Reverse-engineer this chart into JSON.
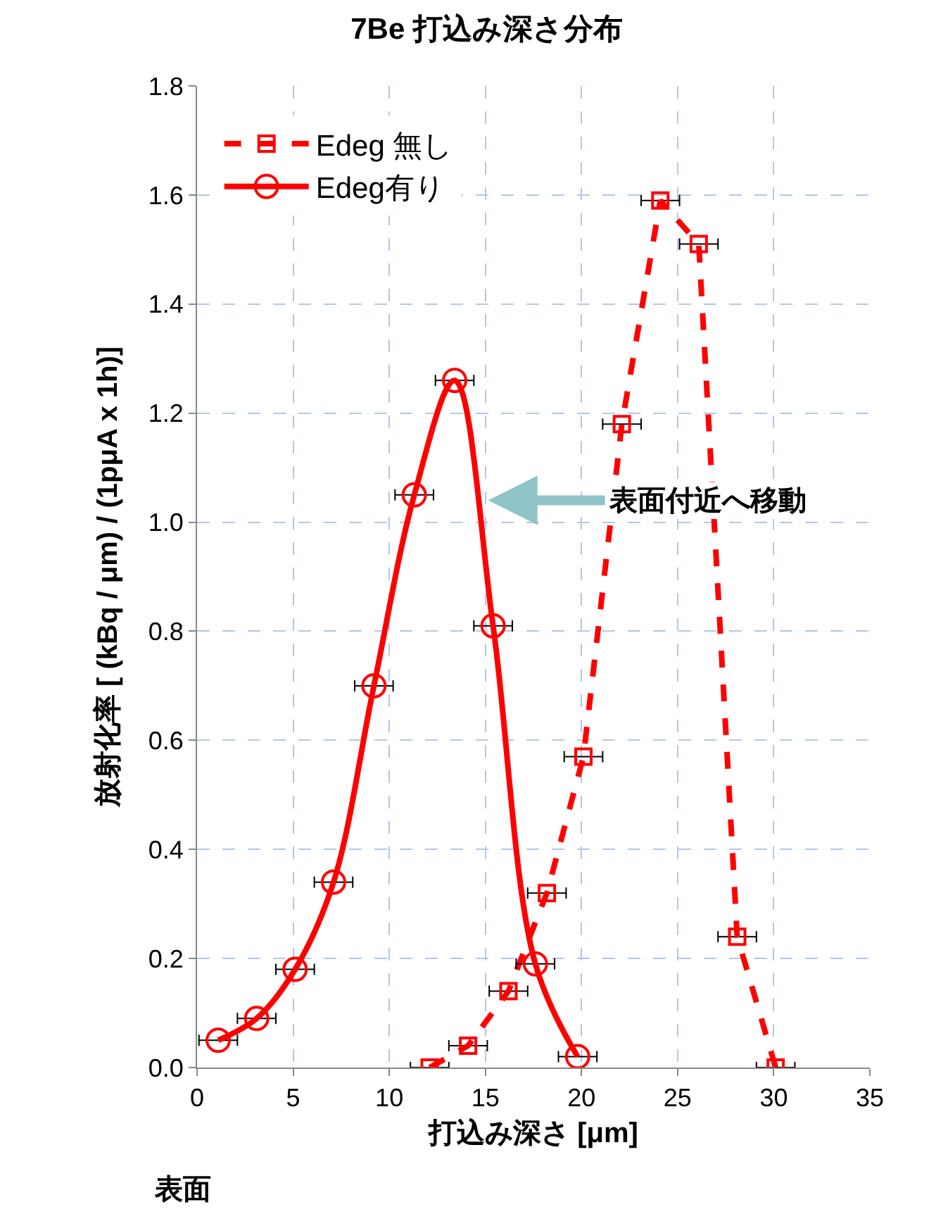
{
  "chart_data": {
    "type": "line",
    "title": "7Be 打込み深さ分布",
    "xlabel": "打込み深さ [μm]",
    "ylabel": "放射化率 [ (kBq / μm) / (1pμA x 1h)]",
    "xlim": [
      0,
      35
    ],
    "xticks": [
      0,
      5,
      10,
      15,
      20,
      25,
      30,
      35
    ],
    "ylim": [
      0,
      1.8
    ],
    "yticks": [
      {
        "value": 0,
        "label": "0.0"
      },
      {
        "value": 0.2,
        "label": "0.2"
      },
      {
        "value": 0.4,
        "label": "0.4"
      },
      {
        "value": 0.6,
        "label": "0.6"
      },
      {
        "value": 0.8,
        "label": "0.8"
      },
      {
        "value": 1,
        "label": "1.0"
      },
      {
        "value": 1.2,
        "label": "1.2"
      },
      {
        "value": 1.4,
        "label": "1.4"
      },
      {
        "value": 1.6,
        "label": "1.6"
      },
      {
        "value": 1.8,
        "label": "1.8"
      }
    ],
    "grid": true,
    "legend": "top left",
    "series": [
      {
        "name": "Edeg 無し",
        "color": "#ff0000",
        "marker": "square",
        "line_style": "dashed",
        "x": [
          12.1,
          14.1,
          16.2,
          18.2,
          20.1,
          22.1,
          24.1,
          26.1,
          28.1,
          30.1
        ],
        "values": [
          0,
          0.04,
          0.14,
          0.32,
          0.57,
          1.18,
          1.59,
          1.51,
          0.24,
          0
        ],
        "xerrors": [
          1,
          1,
          1,
          1,
          1,
          1,
          1,
          1,
          1,
          1
        ]
      },
      {
        "name": "Edeg有り",
        "color": "#ff0000",
        "marker": "circle",
        "line_style": "solid",
        "x": [
          1.1,
          3.1,
          5.1,
          7.1,
          9.2,
          11.3,
          13.4,
          15.4,
          17.6,
          19.8
        ],
        "values": [
          0.05,
          0.09,
          0.18,
          0.34,
          0.7,
          1.05,
          1.26,
          0.81,
          0.19,
          0.02
        ],
        "xerrors": [
          1,
          1,
          1,
          1,
          1,
          1,
          1,
          1,
          1,
          1
        ]
      }
    ],
    "annotations": [
      {
        "text": "表面付近へ移動",
        "x": 15,
        "y": 1.04
      },
      "表面"
    ]
  }
}
